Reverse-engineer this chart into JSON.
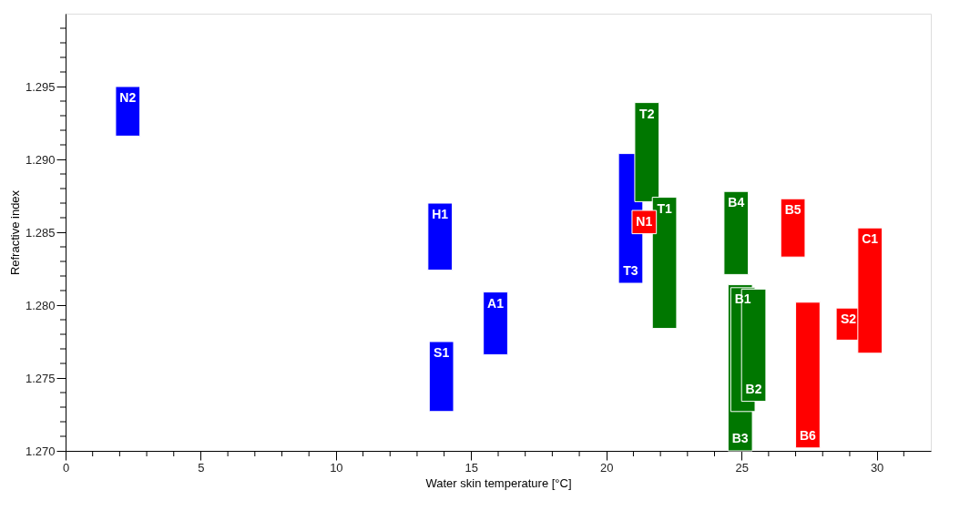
{
  "chart_data": {
    "type": "bar",
    "xlabel": "Water skin temperature [°C]",
    "ylabel": "Refractive index",
    "xlim": [
      0,
      32
    ],
    "ylim": [
      1.27,
      1.3
    ],
    "xticks": [
      0,
      {
        "value": 1,
        "label": null
      },
      {
        "value": 2,
        "label": null
      },
      {
        "value": 3,
        "label": null
      },
      {
        "value": 4,
        "label": null
      },
      5,
      {
        "value": 6,
        "label": null
      },
      {
        "value": 7,
        "label": null
      },
      {
        "value": 8,
        "label": null
      },
      {
        "value": 9,
        "label": null
      },
      10,
      {
        "value": 11,
        "label": null
      },
      {
        "value": 12,
        "label": null
      },
      {
        "value": 13,
        "label": null
      },
      {
        "value": 14,
        "label": null
      },
      15,
      {
        "value": 16,
        "label": null
      },
      {
        "value": 17,
        "label": null
      },
      {
        "value": 18,
        "label": null
      },
      {
        "value": 19,
        "label": null
      },
      20,
      {
        "value": 21,
        "label": null
      },
      {
        "value": 22,
        "label": null
      },
      {
        "value": 23,
        "label": null
      },
      {
        "value": 24,
        "label": null
      },
      25,
      {
        "value": 26,
        "label": null
      },
      {
        "value": 27,
        "label": null
      },
      {
        "value": 28,
        "label": null
      },
      {
        "value": 29,
        "label": null
      },
      30,
      {
        "value": 31,
        "label": null
      }
    ],
    "yticks": [
      {
        "value": 1.27,
        "label": "1.270"
      },
      {
        "value": 1.271,
        "label": null
      },
      {
        "value": 1.272,
        "label": null
      },
      {
        "value": 1.273,
        "label": null
      },
      {
        "value": 1.274,
        "label": null
      },
      1.275,
      {
        "value": 1.276,
        "label": null
      },
      {
        "value": 1.277,
        "label": null
      },
      {
        "value": 1.278,
        "label": null
      },
      {
        "value": 1.279,
        "label": null
      },
      {
        "value": 1.28,
        "label": "1.280"
      },
      {
        "value": 1.281,
        "label": null
      },
      {
        "value": 1.282,
        "label": null
      },
      {
        "value": 1.283,
        "label": null
      },
      {
        "value": 1.284,
        "label": null
      },
      1.285,
      {
        "value": 1.286,
        "label": null
      },
      {
        "value": 1.287,
        "label": null
      },
      {
        "value": 1.288,
        "label": null
      },
      {
        "value": 1.289,
        "label": null
      },
      {
        "value": 1.29,
        "label": "1.290"
      },
      {
        "value": 1.291,
        "label": null
      },
      {
        "value": 1.292,
        "label": null
      },
      {
        "value": 1.293,
        "label": null
      },
      {
        "value": 1.294,
        "label": null
      },
      1.295,
      {
        "value": 1.296,
        "label": null
      },
      {
        "value": 1.297,
        "label": null
      },
      {
        "value": 1.298,
        "label": null
      },
      {
        "value": 1.299,
        "label": null
      }
    ],
    "grid": false,
    "series": [
      {
        "color": "#0000ff",
        "x": [
          2.3,
          13.85,
          13.9,
          15.9,
          20.9
        ],
        "base": [
          1.2916,
          1.2824,
          1.2727,
          1.2766,
          1.2815
        ],
        "values": [
          0.0034,
          0.0046,
          0.0048,
          0.0043,
          0.0089
        ]
      },
      {
        "color": "#007700",
        "x": [
          21.5,
          22.15,
          24.8,
          24.95,
          25.05,
          25.45
        ],
        "base": [
          1.2871,
          1.2784,
          1.2821,
          1.27,
          1.2727,
          1.2734
        ],
        "values": [
          0.0068,
          0.009,
          0.0057,
          0.0114,
          0.0085,
          0.0077
        ]
      },
      {
        "color": "#ff0000",
        "x": [
          21.4,
          26.9,
          27.45,
          28.95,
          29.75
        ],
        "base": [
          1.2849,
          1.2833,
          1.2702,
          1.2776,
          1.2767
        ],
        "values": [
          0.0016,
          0.004,
          0.01,
          0.0022,
          0.0086
        ]
      }
    ],
    "annotations": [
      {
        "text": "N2",
        "x": 2.3,
        "y": 1.295
      },
      {
        "text": "H1",
        "x": 13.85,
        "y": 1.287
      },
      {
        "text": "S1",
        "x": 13.9,
        "y": 1.2775
      },
      {
        "text": "A1",
        "x": 15.9,
        "y": 1.2809
      },
      {
        "text": "T3",
        "x": 20.9,
        "y": 1.2815
      },
      {
        "text": "T2",
        "x": 21.5,
        "y": 1.2939
      },
      {
        "text": "T1",
        "x": 22.15,
        "y": 1.2874
      },
      {
        "text": "B4",
        "x": 24.8,
        "y": 1.2878
      },
      {
        "text": "B1",
        "x": 25.05,
        "y": 1.2812
      },
      {
        "text": "B3",
        "x": 24.95,
        "y": 1.27
      },
      {
        "text": "B2",
        "x": 25.45,
        "y": 1.2734
      },
      {
        "text": "N1",
        "x": 21.4,
        "y": 1.2865
      },
      {
        "text": "B5",
        "x": 26.9,
        "y": 1.2873
      },
      {
        "text": "B6",
        "x": 27.45,
        "y": 1.2702
      },
      {
        "text": "S2",
        "x": 28.95,
        "y": 1.2798
      },
      {
        "text": "C1",
        "x": 29.75,
        "y": 1.2853
      }
    ]
  }
}
